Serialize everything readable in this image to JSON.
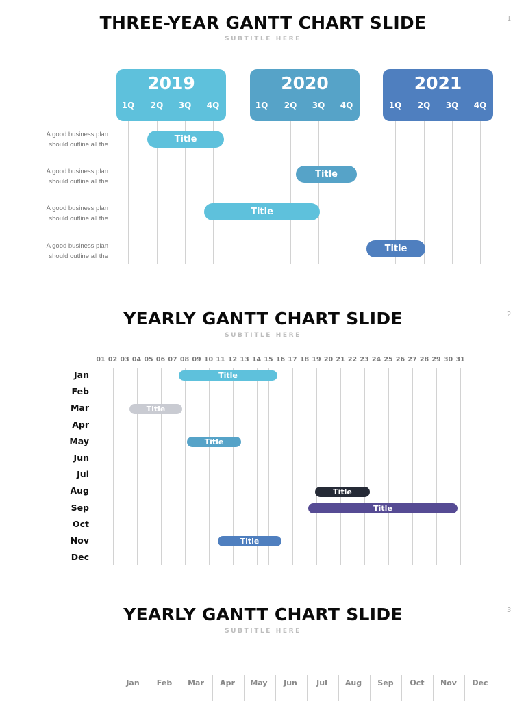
{
  "slides": [
    {
      "number": "1",
      "title": "THREE-YEAR GANTT CHART SLIDE",
      "subtitle": "SUBTITLE HERE",
      "years": [
        {
          "label": "2019",
          "color": "#5ec1dc",
          "quarters": [
            "1Q",
            "2Q",
            "3Q",
            "4Q"
          ]
        },
        {
          "label": "2020",
          "color": "#56a3c8",
          "quarters": [
            "1Q",
            "2Q",
            "3Q",
            "4Q"
          ]
        },
        {
          "label": "2021",
          "color": "#4f7fbf",
          "quarters": [
            "1Q",
            "2Q",
            "3Q",
            "4Q"
          ]
        }
      ],
      "rows": [
        {
          "desc_line1": "A good business plan",
          "desc_line2": "should outline all the",
          "bar_label": "Title",
          "color": "#5ec1dc"
        },
        {
          "desc_line1": "A good business plan",
          "desc_line2": "should outline all the",
          "bar_label": "Title",
          "color": "#56a3c8"
        },
        {
          "desc_line1": "A good business plan",
          "desc_line2": "should outline all the",
          "bar_label": "Title",
          "color": "#5ec1dc"
        },
        {
          "desc_line1": "A good business plan",
          "desc_line2": "should outline all the",
          "bar_label": "Title",
          "color": "#4f7fbf"
        }
      ]
    },
    {
      "number": "2",
      "title": "YEARLY GANTT CHART SLIDE",
      "subtitle": "SUBTITLE HERE",
      "days": [
        "01",
        "02",
        "03",
        "04",
        "05",
        "06",
        "07",
        "08",
        "09",
        "10",
        "11",
        "12",
        "13",
        "14",
        "15",
        "16",
        "17",
        "18",
        "19",
        "20",
        "21",
        "22",
        "23",
        "24",
        "25",
        "26",
        "27",
        "28",
        "29",
        "30",
        "31"
      ],
      "months": [
        "Jan",
        "Feb",
        "Mar",
        "Apr",
        "May",
        "Jun",
        "Jul",
        "Aug",
        "Sep",
        "Oct",
        "Nov",
        "Dec"
      ],
      "bars": [
        {
          "month": "Jan",
          "label": "Title",
          "color": "#5ec1dc"
        },
        {
          "month": "Mar",
          "label": "Title",
          "color": "#c9cbd2"
        },
        {
          "month": "May",
          "label": "Title",
          "color": "#56a3c8"
        },
        {
          "month": "Aug",
          "label": "Title",
          "color": "#252a36"
        },
        {
          "month": "Sep",
          "label": "Title",
          "color": "#564b94"
        },
        {
          "month": "Nov",
          "label": "Title",
          "color": "#4f7fbf"
        }
      ]
    },
    {
      "number": "3",
      "title": "YEARLY GANTT CHART SLIDE",
      "subtitle": "SUBTITLE HERE",
      "months": [
        "Jan",
        "Feb",
        "Mar",
        "Apr",
        "May",
        "Jun",
        "Jul",
        "Aug",
        "Sep",
        "Oct",
        "Nov",
        "Dec"
      ]
    }
  ],
  "chart_data": [
    {
      "type": "gantt",
      "title": "THREE-YEAR GANTT CHART SLIDE",
      "subtitle": "SUBTITLE HERE",
      "x_axis": {
        "groups": [
          "2019",
          "2020",
          "2021"
        ],
        "ticks": [
          "1Q",
          "2Q",
          "3Q",
          "4Q"
        ]
      },
      "tasks": [
        {
          "label": "Title",
          "row_text": "A good business plan should outline all the",
          "start": "2019 ~1.7Q",
          "end": "2019 ~4.4Q"
        },
        {
          "label": "Title",
          "row_text": "A good business plan should outline all the",
          "start": "2020 ~2.2Q",
          "end": "2020 ~4.4Q"
        },
        {
          "label": "Title",
          "row_text": "A good business plan should outline all the",
          "start": "2019 ~3.7Q",
          "end": "2020 ~3.1Q"
        },
        {
          "label": "Title",
          "row_text": "A good business plan should outline all the",
          "start": "2020 ~4.7Q",
          "end": "2021 ~2.0Q"
        }
      ]
    },
    {
      "type": "gantt",
      "title": "YEARLY GANTT CHART SLIDE",
      "subtitle": "SUBTITLE HERE",
      "x_axis": {
        "label": "day",
        "ticks": [
          "01",
          "02",
          "03",
          "04",
          "05",
          "06",
          "07",
          "08",
          "09",
          "10",
          "11",
          "12",
          "13",
          "14",
          "15",
          "16",
          "17",
          "18",
          "19",
          "20",
          "21",
          "22",
          "23",
          "24",
          "25",
          "26",
          "27",
          "28",
          "29",
          "30",
          "31"
        ]
      },
      "y_axis": {
        "label": "month",
        "ticks": [
          "Jan",
          "Feb",
          "Mar",
          "Apr",
          "May",
          "Jun",
          "Jul",
          "Aug",
          "Sep",
          "Oct",
          "Nov",
          "Dec"
        ]
      },
      "tasks": [
        {
          "row": "Jan",
          "label": "Title",
          "start_day": 7.5,
          "end_day": 15.8
        },
        {
          "row": "Mar",
          "label": "Title",
          "start_day": 3.4,
          "end_day": 7.8
        },
        {
          "row": "May",
          "label": "Title",
          "start_day": 8.2,
          "end_day": 12.7
        },
        {
          "row": "Aug",
          "label": "Title",
          "start_day": 18.9,
          "end_day": 23.5
        },
        {
          "row": "Sep",
          "label": "Title",
          "start_day": 18.3,
          "end_day": 30.8
        },
        {
          "row": "Nov",
          "label": "Title",
          "start_day": 10.8,
          "end_day": 16.1
        }
      ],
      "grid": true
    },
    {
      "type": "gantt",
      "title": "YEARLY GANTT CHART SLIDE",
      "subtitle": "SUBTITLE HERE",
      "x_axis": {
        "ticks": [
          "Jan",
          "Feb",
          "Mar",
          "Apr",
          "May",
          "Jun",
          "Jul",
          "Aug",
          "Sep",
          "Oct",
          "Nov",
          "Dec"
        ]
      },
      "tasks": []
    }
  ]
}
